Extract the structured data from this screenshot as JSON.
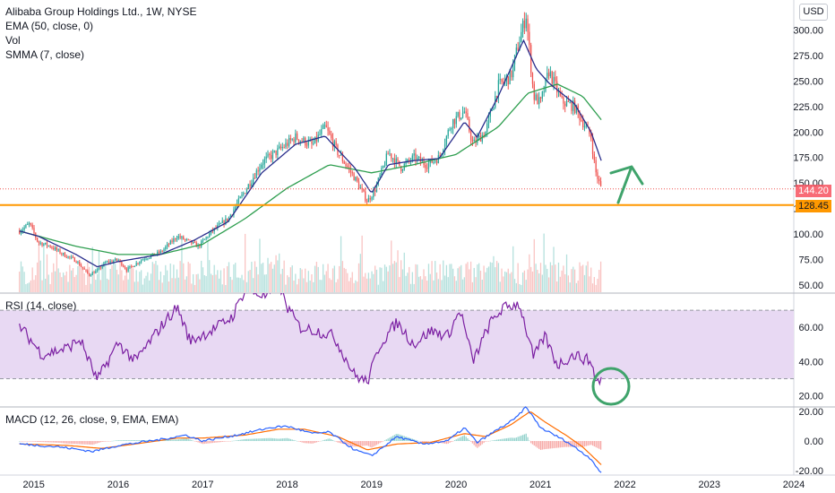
{
  "legend": {
    "title": "Alibaba Group Holdings Ltd., 1W, NYSE",
    "ema": "EMA (50, close, 0)",
    "vol": "Vol",
    "smma": "SMMA (7, close)",
    "rsi": "RSI (14, close)",
    "macd": "MACD (12, 26, close, 9, EMA, EMA)"
  },
  "currency": "USD",
  "tags": {
    "last_price": "144.20",
    "support_level": "128.45"
  },
  "colors": {
    "up": "#26a69a",
    "down": "#ef5350",
    "smma": "#2a2e8c",
    "ema": "#2e9e4f",
    "support": "#ff9800",
    "rsi_line": "#7b1fa2",
    "rsi_band": "#e8d9f3",
    "macd_line": "#2962ff",
    "signal_line": "#ff6d00",
    "annotation": "#3fa36b"
  },
  "chart_data": [
    {
      "type": "candlestick",
      "title": "Alibaba Group Holdings Ltd., 1W, NYSE",
      "x_ticks": [
        "2015",
        "2016",
        "2017",
        "2018",
        "2019",
        "2020",
        "2021",
        "2022",
        "2023",
        "2024"
      ],
      "y_ticks": [
        50,
        75,
        100,
        125,
        150,
        175,
        200,
        225,
        250,
        275,
        300
      ],
      "ylim": [
        43,
        325
      ],
      "xlim": [
        2014.6,
        2024.0
      ],
      "price_path": [
        [
          2014.83,
          103
        ],
        [
          2014.95,
          110
        ],
        [
          2015.05,
          92
        ],
        [
          2015.2,
          88
        ],
        [
          2015.35,
          80
        ],
        [
          2015.5,
          74
        ],
        [
          2015.65,
          60
        ],
        [
          2015.75,
          64
        ],
        [
          2015.85,
          72
        ],
        [
          2016.0,
          75
        ],
        [
          2016.1,
          65
        ],
        [
          2016.3,
          76
        ],
        [
          2016.5,
          82
        ],
        [
          2016.7,
          98
        ],
        [
          2016.85,
          92
        ],
        [
          2016.95,
          88
        ],
        [
          2017.1,
          102
        ],
        [
          2017.3,
          115
        ],
        [
          2017.5,
          142
        ],
        [
          2017.7,
          170
        ],
        [
          2017.9,
          182
        ],
        [
          2018.1,
          195
        ],
        [
          2018.3,
          187
        ],
        [
          2018.45,
          205
        ],
        [
          2018.6,
          180
        ],
        [
          2018.8,
          155
        ],
        [
          2018.95,
          132
        ],
        [
          2019.05,
          145
        ],
        [
          2019.2,
          180
        ],
        [
          2019.35,
          165
        ],
        [
          2019.5,
          175
        ],
        [
          2019.65,
          168
        ],
        [
          2019.8,
          175
        ],
        [
          2019.95,
          210
        ],
        [
          2020.1,
          220
        ],
        [
          2020.2,
          188
        ],
        [
          2020.35,
          200
        ],
        [
          2020.5,
          245
        ],
        [
          2020.65,
          255
        ],
        [
          2020.75,
          290
        ],
        [
          2020.83,
          315
        ],
        [
          2020.92,
          235
        ],
        [
          2021.0,
          228
        ],
        [
          2021.1,
          260
        ],
        [
          2021.25,
          230
        ],
        [
          2021.4,
          225
        ],
        [
          2021.5,
          210
        ],
        [
          2021.6,
          195
        ],
        [
          2021.65,
          162
        ],
        [
          2021.72,
          144
        ]
      ],
      "ema50_path": [
        [
          2014.83,
          103
        ],
        [
          2015.5,
          88
        ],
        [
          2016.0,
          80
        ],
        [
          2016.5,
          80
        ],
        [
          2017.0,
          90
        ],
        [
          2017.5,
          115
        ],
        [
          2018.0,
          145
        ],
        [
          2018.5,
          168
        ],
        [
          2019.0,
          160
        ],
        [
          2019.5,
          168
        ],
        [
          2020.0,
          178
        ],
        [
          2020.5,
          205
        ],
        [
          2020.85,
          238
        ],
        [
          2021.2,
          247
        ],
        [
          2021.5,
          235
        ],
        [
          2021.72,
          212
        ]
      ],
      "smma7_path": [
        [
          2014.83,
          103
        ],
        [
          2015.05,
          98
        ],
        [
          2015.5,
          80
        ],
        [
          2015.75,
          68
        ],
        [
          2016.0,
          73
        ],
        [
          2016.5,
          80
        ],
        [
          2016.9,
          94
        ],
        [
          2017.3,
          112
        ],
        [
          2017.7,
          160
        ],
        [
          2018.1,
          188
        ],
        [
          2018.45,
          196
        ],
        [
          2018.8,
          165
        ],
        [
          2019.0,
          140
        ],
        [
          2019.2,
          168
        ],
        [
          2019.5,
          172
        ],
        [
          2019.8,
          174
        ],
        [
          2020.1,
          210
        ],
        [
          2020.25,
          195
        ],
        [
          2020.5,
          235
        ],
        [
          2020.8,
          290
        ],
        [
          2020.95,
          262
        ],
        [
          2021.1,
          248
        ],
        [
          2021.4,
          228
        ],
        [
          2021.6,
          200
        ],
        [
          2021.72,
          172
        ]
      ],
      "support_level": 128.45,
      "last_price": 144.2,
      "volume": {
        "ylim_label": "relative",
        "max": 1.0
      }
    },
    {
      "type": "line",
      "title": "RSI (14, close)",
      "y_ticks": [
        20,
        40,
        60
      ],
      "ylim": [
        14,
        80
      ],
      "band": [
        30,
        70
      ],
      "values_path": [
        [
          2014.83,
          61
        ],
        [
          2015.1,
          44
        ],
        [
          2015.4,
          48
        ],
        [
          2015.55,
          53
        ],
        [
          2015.75,
          29
        ],
        [
          2016.0,
          51
        ],
        [
          2016.2,
          40
        ],
        [
          2016.5,
          60
        ],
        [
          2016.7,
          72
        ],
        [
          2016.85,
          52
        ],
        [
          2017.1,
          58
        ],
        [
          2017.35,
          66
        ],
        [
          2017.5,
          82
        ],
        [
          2017.75,
          78
        ],
        [
          2017.9,
          85
        ],
        [
          2018.0,
          72
        ],
        [
          2018.15,
          60
        ],
        [
          2018.35,
          58
        ],
        [
          2018.55,
          55
        ],
        [
          2018.8,
          32
        ],
        [
          2018.95,
          28
        ],
        [
          2019.1,
          50
        ],
        [
          2019.3,
          63
        ],
        [
          2019.5,
          50
        ],
        [
          2019.7,
          58
        ],
        [
          2019.9,
          55
        ],
        [
          2020.05,
          70
        ],
        [
          2020.2,
          40
        ],
        [
          2020.4,
          62
        ],
        [
          2020.55,
          71
        ],
        [
          2020.75,
          74
        ],
        [
          2020.92,
          42
        ],
        [
          2021.05,
          55
        ],
        [
          2021.2,
          38
        ],
        [
          2021.4,
          44
        ],
        [
          2021.6,
          40
        ],
        [
          2021.66,
          28
        ],
        [
          2021.72,
          30
        ]
      ]
    },
    {
      "type": "line",
      "title": "MACD (12, 26, close, 9, EMA, EMA)",
      "y_ticks": [
        -20,
        0,
        20
      ],
      "ylim": [
        -23,
        23
      ],
      "macd_path": [
        [
          2014.83,
          -2
        ],
        [
          2015.3,
          -4
        ],
        [
          2015.7,
          -7
        ],
        [
          2016.0,
          -3
        ],
        [
          2016.5,
          1
        ],
        [
          2016.8,
          4
        ],
        [
          2017.0,
          0
        ],
        [
          2017.4,
          4
        ],
        [
          2017.8,
          9
        ],
        [
          2018.0,
          10
        ],
        [
          2018.3,
          5
        ],
        [
          2018.5,
          6
        ],
        [
          2018.8,
          -6
        ],
        [
          2019.0,
          -10
        ],
        [
          2019.3,
          3
        ],
        [
          2019.6,
          -2
        ],
        [
          2019.9,
          0
        ],
        [
          2020.1,
          9
        ],
        [
          2020.25,
          -1
        ],
        [
          2020.5,
          8
        ],
        [
          2020.7,
          15
        ],
        [
          2020.83,
          23
        ],
        [
          2021.0,
          9
        ],
        [
          2021.1,
          6
        ],
        [
          2021.3,
          0
        ],
        [
          2021.5,
          -8
        ],
        [
          2021.6,
          -12
        ],
        [
          2021.72,
          -22
        ]
      ],
      "signal_path": [
        [
          2014.83,
          -2
        ],
        [
          2015.4,
          -3
        ],
        [
          2015.8,
          -5
        ],
        [
          2016.2,
          -2
        ],
        [
          2016.7,
          2
        ],
        [
          2017.0,
          2
        ],
        [
          2017.5,
          4
        ],
        [
          2017.9,
          8
        ],
        [
          2018.2,
          8
        ],
        [
          2018.6,
          3
        ],
        [
          2018.95,
          -6
        ],
        [
          2019.3,
          -2
        ],
        [
          2019.7,
          -1
        ],
        [
          2020.1,
          5
        ],
        [
          2020.35,
          3
        ],
        [
          2020.65,
          11
        ],
        [
          2020.88,
          20
        ],
        [
          2021.05,
          13
        ],
        [
          2021.3,
          4
        ],
        [
          2021.5,
          -4
        ],
        [
          2021.72,
          -16
        ]
      ]
    }
  ]
}
